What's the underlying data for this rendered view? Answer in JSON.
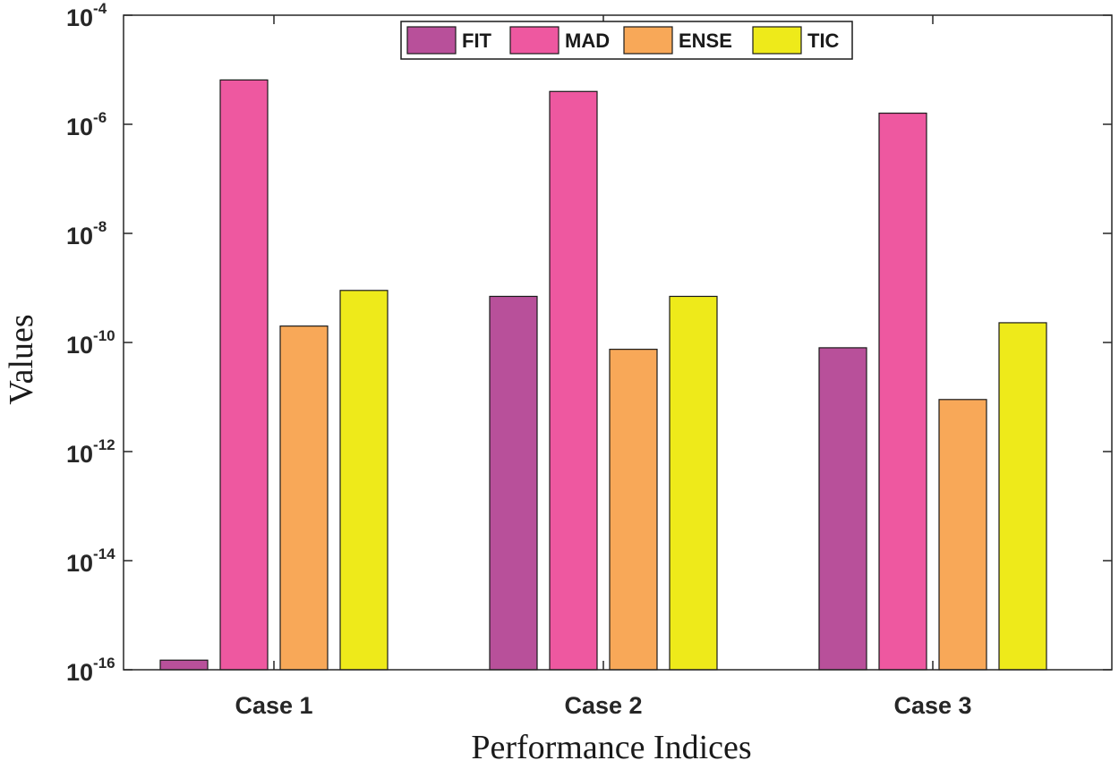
{
  "chart_data": {
    "type": "bar",
    "xlabel": "Performance Indices",
    "ylabel": "Values",
    "yscale": "log",
    "ylim": [
      1e-16,
      0.0001
    ],
    "yticks": [
      {
        "base": "10",
        "exp": "-16"
      },
      {
        "base": "10",
        "exp": "-14"
      },
      {
        "base": "10",
        "exp": "-12"
      },
      {
        "base": "10",
        "exp": "-10"
      },
      {
        "base": "10",
        "exp": "-8"
      },
      {
        "base": "10",
        "exp": "-6"
      },
      {
        "base": "10",
        "exp": "-4"
      }
    ],
    "categories": [
      "Case 1",
      "Case 2",
      "Case 3"
    ],
    "legend_position": "top-center",
    "grid": false,
    "series": [
      {
        "name": "FIT",
        "color": "#b8509a",
        "values": [
          1.5e-16,
          7e-10,
          8e-11
        ]
      },
      {
        "name": "MAD",
        "color": "#ee58a0",
        "values": [
          6.5e-06,
          4e-06,
          1.6e-06
        ]
      },
      {
        "name": "ENSE",
        "color": "#f8a858",
        "values": [
          2e-10,
          7.5e-11,
          9e-12
        ]
      },
      {
        "name": "TIC",
        "color": "#eeea1a",
        "values": [
          9e-10,
          7e-10,
          2.3e-10
        ]
      }
    ]
  }
}
